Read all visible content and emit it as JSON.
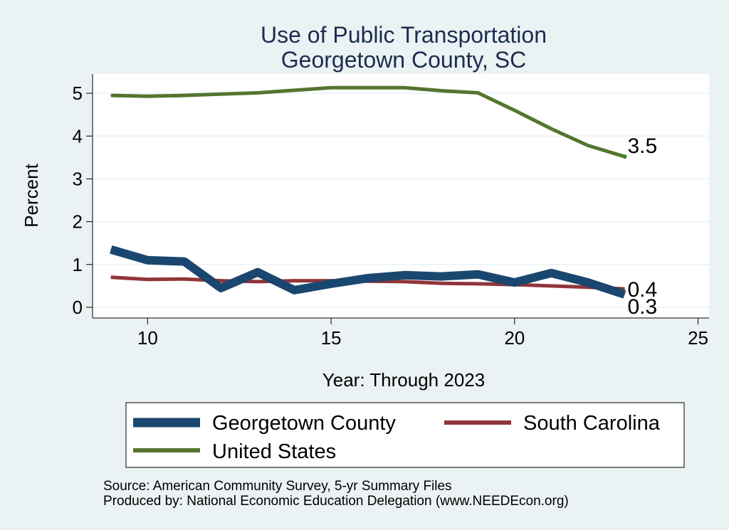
{
  "chart_data": {
    "type": "line",
    "title": [
      "Use of Public Transportation",
      "Georgetown County, SC"
    ],
    "xlabel": "Year: Through 2023",
    "ylabel": "Percent",
    "xlim": [
      8.5,
      25.3
    ],
    "ylim": [
      -0.25,
      5.45
    ],
    "xticks": [
      10,
      15,
      20,
      25
    ],
    "yticks": [
      0,
      1,
      2,
      3,
      4,
      5
    ],
    "grid": "horizontal",
    "legend_position": "bottom",
    "x": [
      9,
      10,
      11,
      12,
      13,
      14,
      15,
      16,
      17,
      18,
      19,
      20,
      21,
      22,
      23
    ],
    "series": [
      {
        "name": "Georgetown County",
        "color": "#1a476f",
        "values": [
          1.35,
          1.1,
          1.07,
          0.45,
          0.82,
          0.4,
          0.55,
          0.68,
          0.75,
          0.72,
          0.77,
          0.58,
          0.8,
          0.58,
          0.3
        ]
      },
      {
        "name": "South Carolina",
        "color": "#90353b",
        "values": [
          0.7,
          0.65,
          0.66,
          0.62,
          0.6,
          0.62,
          0.62,
          0.61,
          0.6,
          0.56,
          0.55,
          0.53,
          0.5,
          0.47,
          0.43
        ]
      },
      {
        "name": "United States",
        "color": "#55752f",
        "values": [
          4.95,
          4.93,
          4.95,
          4.98,
          5.01,
          5.07,
          5.13,
          5.13,
          5.13,
          5.06,
          5.01,
          4.6,
          4.17,
          3.78,
          3.52
        ]
      }
    ],
    "end_labels": [
      "0.3",
      "0.4",
      "3.5"
    ],
    "notes": [
      "Source: American Community Survey, 5-yr Summary Files",
      "Produced by: National Economic Education Delegation (www.NEEDEcon.org)"
    ]
  }
}
